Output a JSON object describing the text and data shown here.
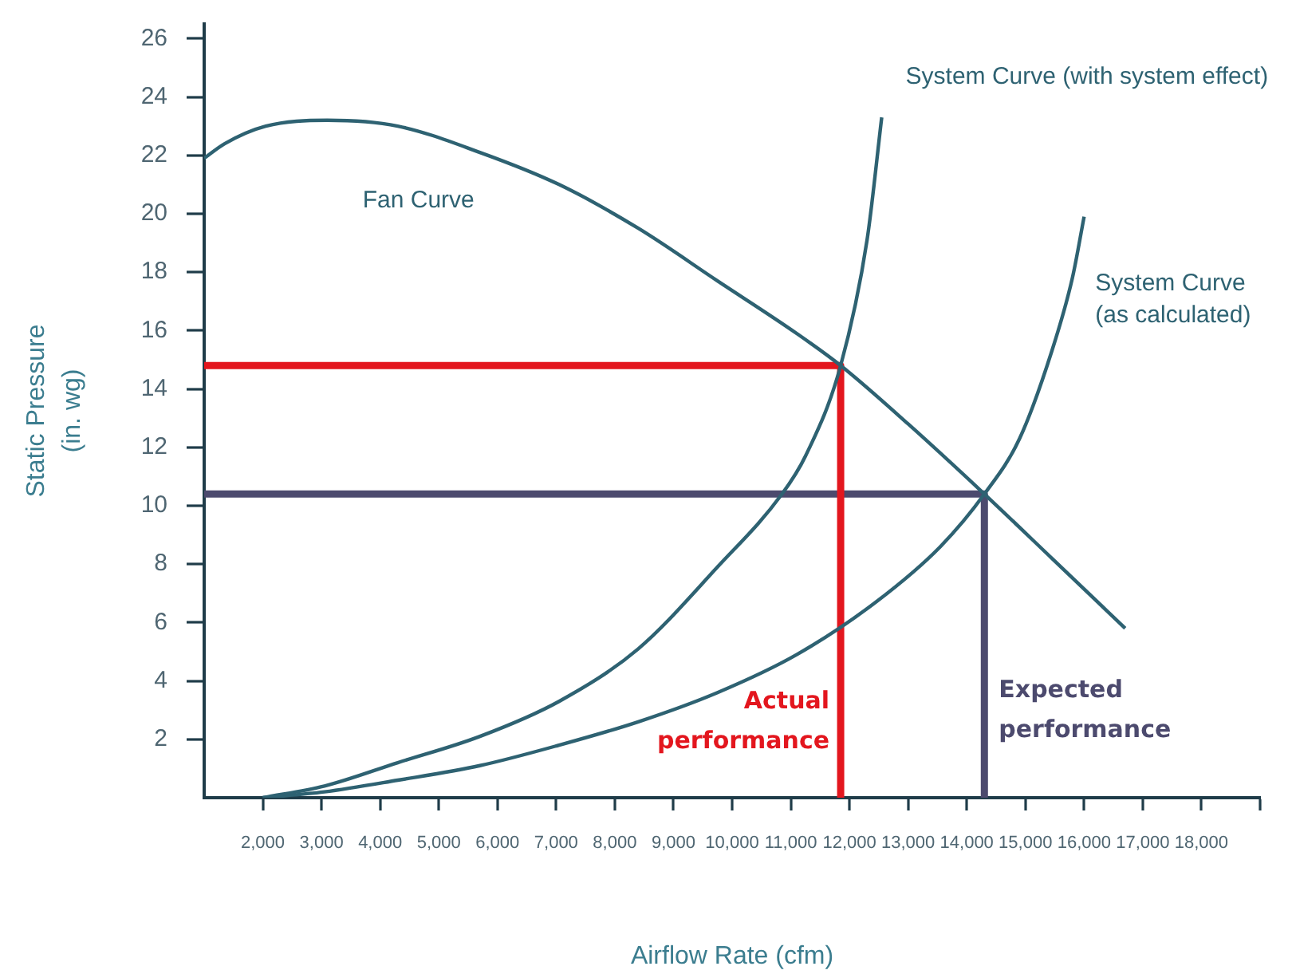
{
  "chart_data": {
    "type": "line",
    "xlabel": "Airflow Rate (cfm)",
    "ylabel": "Static Pressure (in. wg)",
    "xlim": [
      1000,
      19000
    ],
    "xticks": [
      {
        "value": 2000,
        "label": "2,000"
      },
      {
        "value": 3000,
        "label": "3,000"
      },
      {
        "value": 4000,
        "label": "4,000"
      },
      {
        "value": 5000,
        "label": "5,000"
      },
      {
        "value": 6000,
        "label": "6,000"
      },
      {
        "value": 7000,
        "label": "7,000"
      },
      {
        "value": 8000,
        "label": "8,000"
      },
      {
        "value": 9000,
        "label": "9,000"
      },
      {
        "value": 10000,
        "label": "10,000"
      },
      {
        "value": 11000,
        "label": "11,000"
      },
      {
        "value": 12000,
        "label": "12,000"
      },
      {
        "value": 13000,
        "label": "13,000"
      },
      {
        "value": 14000,
        "label": "14,000"
      },
      {
        "value": 15000,
        "label": "15,000"
      },
      {
        "value": 16000,
        "label": "16,000"
      },
      {
        "value": 17000,
        "label": "17,000"
      },
      {
        "value": 18000,
        "label": "18,000"
      },
      {
        "value": 19000,
        "label": null
      }
    ],
    "ylim": [
      0,
      26.5
    ],
    "yticks": [
      2,
      4,
      6,
      8,
      10,
      12,
      14,
      16,
      18,
      20,
      22,
      24,
      26
    ],
    "grid": false,
    "legend": false,
    "marker": "none",
    "line_style": "solid",
    "series": [
      {
        "name": "Fan Curve",
        "color": "#2e6272",
        "x": [
          1000,
          1350,
          2050,
          3100,
          4300,
          5700,
          7050,
          8400,
          9750,
          11100,
          11850,
          13000,
          14300,
          15450,
          16700
        ],
        "values": [
          21.9,
          22.4,
          23.0,
          23.2,
          23.0,
          22.1,
          21.0,
          19.5,
          17.7,
          15.9,
          14.8,
          12.8,
          10.4,
          8.2,
          5.8
        ]
      },
      {
        "name": "System Curve (with system effect)",
        "color": "#2e6272",
        "x": [
          2000,
          3050,
          4300,
          5700,
          7050,
          8400,
          9750,
          10850,
          11250,
          11850,
          12300,
          12550
        ],
        "values": [
          0,
          0.4,
          1.2,
          2.1,
          3.3,
          5.1,
          7.9,
          10.4,
          11.7,
          14.8,
          19.1,
          23.3
        ]
      },
      {
        "name": "System Curve (as calculated)",
        "color": "#2e6272",
        "x": [
          2000,
          3050,
          4300,
          5700,
          7050,
          8400,
          9750,
          11100,
          12450,
          13550,
          14300,
          14900,
          15450,
          15800,
          16000
        ],
        "values": [
          0,
          0.2,
          0.6,
          1.1,
          1.8,
          2.6,
          3.6,
          4.9,
          6.7,
          8.6,
          10.4,
          12.3,
          15.3,
          17.8,
          19.9
        ]
      },
      {
        "name": "Actual performance",
        "color": "#e3161e",
        "x": [
          1000,
          11850,
          11850
        ],
        "values": [
          14.8,
          14.8,
          0
        ]
      },
      {
        "name": "Expected performance",
        "color": "#4c4a6e",
        "x": [
          1000,
          14300,
          14300
        ],
        "values": [
          10.4,
          10.4,
          0
        ]
      }
    ]
  }
}
